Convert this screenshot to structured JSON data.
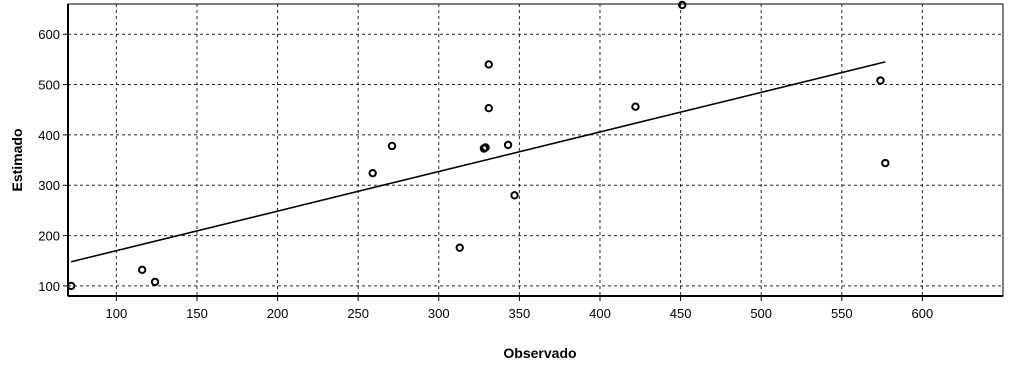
{
  "chart_data": {
    "type": "scatter",
    "xlabel": "Observado",
    "ylabel": "Estimado",
    "xlim": [
      70,
      650
    ],
    "ylim": [
      80,
      660
    ],
    "x_ticks": [
      100,
      150,
      200,
      250,
      300,
      350,
      400,
      450,
      500,
      550,
      600
    ],
    "y_ticks": [
      100,
      200,
      300,
      400,
      500,
      600
    ],
    "x_tick_labels": [
      "100",
      "150",
      "200",
      "250",
      "300",
      "350",
      "400",
      "450",
      "500",
      "550",
      "600"
    ],
    "y_tick_labels": [
      "100",
      "200",
      "300",
      "400",
      "500",
      "600"
    ],
    "grid": true,
    "series": [
      {
        "points": [
          {
            "x": 72,
            "y": 100
          },
          {
            "x": 116,
            "y": 132
          },
          {
            "x": 124,
            "y": 108
          },
          {
            "x": 259,
            "y": 324
          },
          {
            "x": 271,
            "y": 378
          },
          {
            "x": 313,
            "y": 176
          },
          {
            "x": 328,
            "y": 373
          },
          {
            "x": 329,
            "y": 375
          },
          {
            "x": 331,
            "y": 540
          },
          {
            "x": 331,
            "y": 453
          },
          {
            "x": 343,
            "y": 380
          },
          {
            "x": 347,
            "y": 280
          },
          {
            "x": 422,
            "y": 456
          },
          {
            "x": 451,
            "y": 658
          },
          {
            "x": 574,
            "y": 508
          },
          {
            "x": 577,
            "y": 344
          }
        ]
      }
    ],
    "trendline": [
      {
        "x": 72,
        "y": 148
      },
      {
        "x": 577,
        "y": 545
      }
    ]
  }
}
